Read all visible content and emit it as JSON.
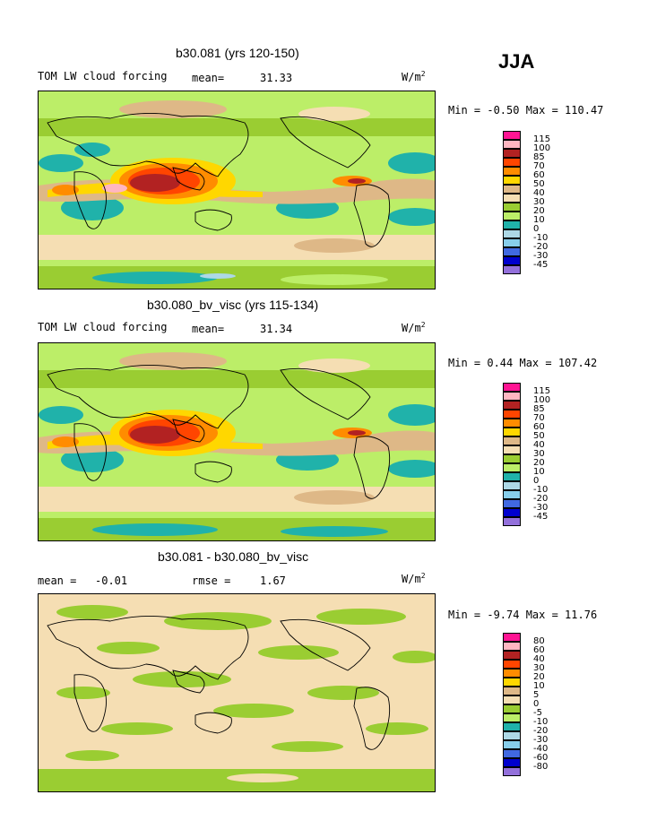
{
  "season": "JJA",
  "units": "W/m",
  "units_sup": "2",
  "colors": {
    "pink": "#ff1493",
    "light_pink": "#ffb6c1",
    "dark_red": "#b22222",
    "red_orange": "#ff4500",
    "orange": "#ff8c00",
    "gold": "#ffd700",
    "tan": "#deb887",
    "wheat": "#f5deb3",
    "olive_green": "#9acd32",
    "light_green": "#bcee68",
    "teal": "#20b2aa",
    "light_blue": "#add8e6",
    "sky_blue": "#87ceeb",
    "royal_blue": "#4169e1",
    "blue": "#0000cd",
    "purple": "#9370db"
  },
  "panels": [
    {
      "title": "b30.081 (yrs 120-150)",
      "field": "TOM LW cloud forcing",
      "stat_label": "mean=",
      "stat_value": "31.33",
      "range_text": "Min =   -0.50 Max = 110.47",
      "legend_labels": [
        "115",
        "100",
        "85",
        "70",
        "60",
        "50",
        "40",
        "30",
        "20",
        "10",
        "0",
        "-10",
        "-20",
        "-30",
        "-45"
      ]
    },
    {
      "title": "b30.080_bv_visc (yrs 115-134)",
      "field": "TOM LW cloud forcing",
      "stat_label": "mean=",
      "stat_value": "31.34",
      "range_text": "Min =   0.44 Max = 107.42",
      "legend_labels": [
        "115",
        "100",
        "85",
        "70",
        "60",
        "50",
        "40",
        "30",
        "20",
        "10",
        "0",
        "-10",
        "-20",
        "-30",
        "-45"
      ]
    },
    {
      "title": "b30.081 - b30.080_bv_visc",
      "mean_label": "mean =",
      "mean_value": "-0.01",
      "rmse_label": "rmse =",
      "rmse_value": "1.67",
      "range_text": "Min =   -9.74 Max =  11.76",
      "legend_labels": [
        "80",
        "60",
        "40",
        "30",
        "20",
        "10",
        "5",
        "0",
        "-5",
        "-10",
        "-20",
        "-30",
        "-40",
        "-60",
        "-80"
      ]
    }
  ]
}
